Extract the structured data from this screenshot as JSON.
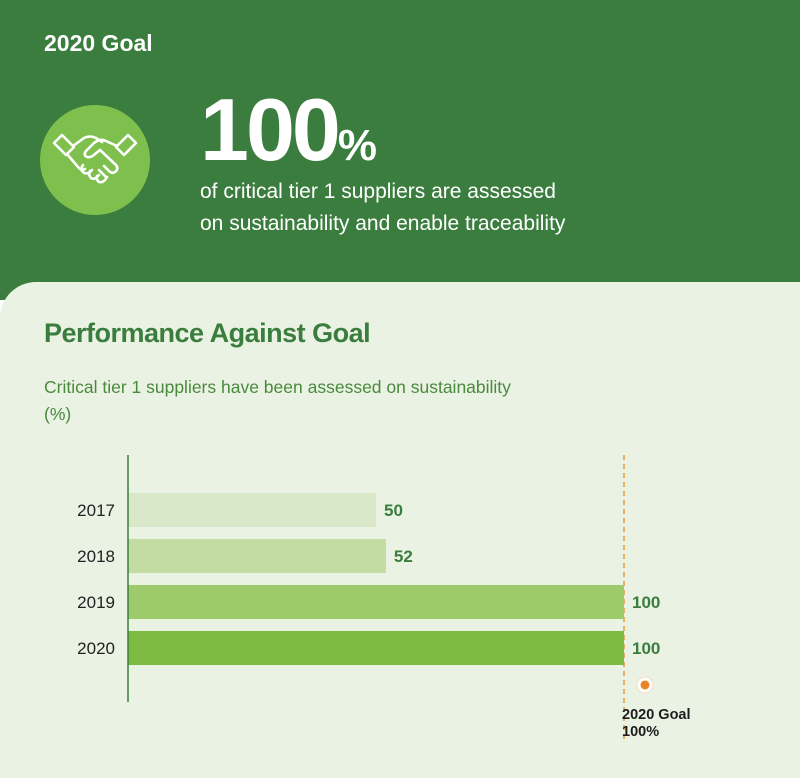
{
  "header": {
    "goal_label": "2020 Goal",
    "big_number": "100",
    "big_number_unit": "%",
    "description_line1": "of critical tier 1 suppliers are assessed",
    "description_line2": "on sustainability and enable traceability",
    "icon": "handshake-icon"
  },
  "section": {
    "title": "Performance Against Goal"
  },
  "chart_data": {
    "type": "bar",
    "orientation": "horizontal",
    "title": "Critical tier 1 suppliers have been assessed on sustainability",
    "unit_line": "(%)",
    "categories": [
      "2017",
      "2018",
      "2019",
      "2020"
    ],
    "values": [
      50,
      52,
      100,
      100
    ],
    "value_labels": [
      "50",
      "52",
      "100",
      "100"
    ],
    "xlim": [
      0,
      100
    ],
    "grid": false,
    "goal": {
      "value": 100,
      "label_line1": "2020 Goal",
      "label_line2": "100%"
    },
    "colors": {
      "bars": [
        "#d9e8c9",
        "#c2dca3",
        "#9dca6b",
        "#7dbb43"
      ],
      "value_labels": "#3a7d3e",
      "goal_line": "#e89a3c",
      "goal_dot": "#e8842c",
      "axis": "#3a7d3e"
    }
  },
  "colors": {
    "header_bg": "#3a7d3e",
    "panel_bg": "#eaf2e3",
    "icon_bg": "#7fbf4d"
  }
}
